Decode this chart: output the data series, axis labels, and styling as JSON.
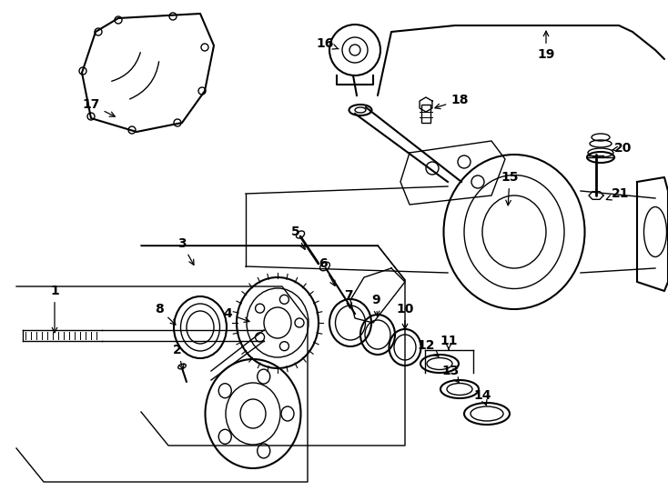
{
  "bg_color": "#ffffff",
  "line_color": "#000000",
  "label_color": "#000000",
  "figsize": [
    7.34,
    5.4
  ],
  "dpi": 100
}
